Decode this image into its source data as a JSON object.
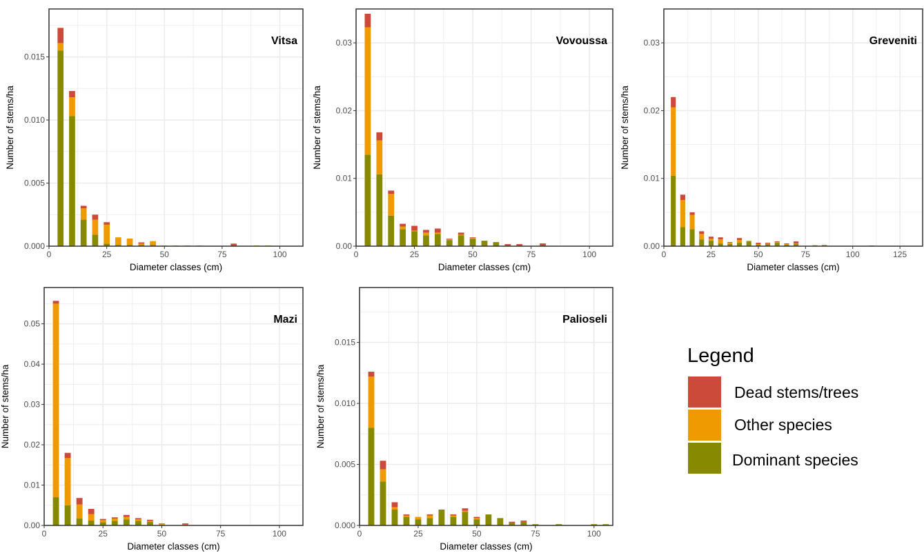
{
  "colors": {
    "dead": "#cc4a3a",
    "other": "#ee9a00",
    "dominant": "#878a00",
    "grid": "#ebebeb",
    "panel_border": "#333333"
  },
  "legend": {
    "title": "Legend",
    "items": [
      {
        "label": "Dead stems/trees",
        "color": "#cc4a3a"
      },
      {
        "label": "Other species",
        "color": "#ee9a00"
      },
      {
        "label": "Dominant species",
        "color": "#878a00"
      }
    ]
  },
  "chart_data": [
    {
      "type": "bar",
      "stacked": true,
      "grid": true,
      "title": "Vitsa",
      "xlabel": "Diameter classes (cm)",
      "ylabel": "Number of stems/ha",
      "xlim": [
        0,
        110
      ],
      "ylim": [
        0,
        0.0188
      ],
      "xticks": [
        0,
        25,
        50,
        75,
        100
      ],
      "yticks": [
        0,
        0.005,
        0.01,
        0.015
      ],
      "ytick_labels": [
        "0.000",
        "0.005",
        "0.010",
        "0.015"
      ],
      "x": [
        5,
        10,
        15,
        20,
        25,
        30,
        35,
        40,
        45,
        50,
        55,
        60,
        65,
        80,
        90,
        95
      ],
      "series": [
        {
          "name": "Dominant species",
          "values": [
            0.0155,
            0.0103,
            0.0021,
            0.0009,
            0.0002,
            0.0001,
            0.0001,
            0.0001,
            0.0001,
            0,
            0,
            0,
            0,
            0,
            0,
            0
          ]
        },
        {
          "name": "Other species",
          "values": [
            0.0006,
            0.0015,
            0.0009,
            0.0012,
            0.0015,
            0.0006,
            0.0005,
            0.0001,
            0.0003,
            5e-05,
            5e-05,
            5e-05,
            5e-05,
            0,
            5e-05,
            5e-05
          ]
        },
        {
          "name": "Dead stems/trees",
          "values": [
            0.0012,
            0.0005,
            0.0002,
            0.0004,
            0.0002,
            0,
            0,
            0.0001,
            0,
            0,
            0,
            0,
            0,
            0.0002,
            0,
            0
          ]
        }
      ]
    },
    {
      "type": "bar",
      "stacked": true,
      "grid": true,
      "title": "Vovoussa",
      "xlabel": "Diameter classes (cm)",
      "ylabel": "Number of stems/ha",
      "xlim": [
        0,
        110
      ],
      "ylim": [
        0,
        0.035
      ],
      "xticks": [
        0,
        25,
        50,
        75,
        100
      ],
      "yticks": [
        0,
        0.01,
        0.02,
        0.03
      ],
      "ytick_labels": [
        "0.00",
        "0.01",
        "0.02",
        "0.03"
      ],
      "x": [
        5,
        10,
        15,
        20,
        25,
        30,
        35,
        40,
        45,
        50,
        55,
        60,
        65,
        70,
        80
      ],
      "series": [
        {
          "name": "Dominant species",
          "values": [
            0.0135,
            0.0106,
            0.0045,
            0.0025,
            0.0022,
            0.0016,
            0.0018,
            0.0009,
            0.0016,
            0.0011,
            0.0008,
            0.0006,
            0.0001,
            0.0001,
            0.0001
          ]
        },
        {
          "name": "Other species",
          "values": [
            0.0188,
            0.005,
            0.0032,
            0.0004,
            0.0001,
            0.0004,
            0.0002,
            0.0001,
            0.0001,
            0.0001,
            0,
            0,
            0,
            0,
            0
          ]
        },
        {
          "name": "Dead stems/trees",
          "values": [
            0.002,
            0.0012,
            0.0005,
            0.0004,
            0.0007,
            0.0004,
            0.0006,
            0.0001,
            0.0003,
            0.0001,
            0,
            0,
            0.0002,
            0.0002,
            0.0003
          ]
        }
      ]
    },
    {
      "type": "bar",
      "stacked": true,
      "grid": true,
      "title": "Greveniti",
      "xlabel": "Diameter classes (cm)",
      "ylabel": "Number of stems/ha",
      "xlim": [
        0,
        137
      ],
      "ylim": [
        0,
        0.035
      ],
      "xticks": [
        0,
        25,
        50,
        75,
        100,
        125
      ],
      "yticks": [
        0,
        0.01,
        0.02,
        0.03
      ],
      "ytick_labels": [
        "0.00",
        "0.01",
        "0.02",
        "0.03"
      ],
      "x": [
        5,
        10,
        15,
        20,
        25,
        30,
        35,
        40,
        45,
        50,
        55,
        60,
        65,
        70,
        80,
        85,
        110
      ],
      "series": [
        {
          "name": "Dominant species",
          "values": [
            0.0104,
            0.0028,
            0.0025,
            0.001,
            0.0008,
            0.0004,
            0.0003,
            0.0005,
            0.0007,
            0.0002,
            0.0003,
            0.0005,
            0.0002,
            0.0003,
            0.0001,
            0.0001,
            0.0001
          ]
        },
        {
          "name": "Other species",
          "values": [
            0.0101,
            0.004,
            0.0021,
            0.0008,
            0.0003,
            0.0006,
            0.0002,
            0.0004,
            0.0001,
            0.0001,
            0.0001,
            0.0001,
            0.0001,
            0.0001,
            5e-05,
            0.0001,
            0
          ]
        },
        {
          "name": "Dead stems/trees",
          "values": [
            0.0015,
            0.0008,
            0.0004,
            0.0004,
            0.0003,
            0.0003,
            0.0001,
            0.0003,
            0,
            0.0002,
            0.0001,
            0.0001,
            0.0001,
            0.0003,
            0,
            0,
            0
          ]
        }
      ]
    },
    {
      "type": "bar",
      "stacked": true,
      "grid": true,
      "title": "Mazi",
      "xlabel": "Diameter classes (cm)",
      "ylabel": "Number of stems/ha",
      "xlim": [
        0,
        110
      ],
      "ylim": [
        0,
        0.059
      ],
      "xticks": [
        0,
        25,
        50,
        75,
        100
      ],
      "yticks": [
        0,
        0.01,
        0.02,
        0.03,
        0.04,
        0.05
      ],
      "ytick_labels": [
        "0.00",
        "0.01",
        "0.02",
        "0.03",
        "0.04",
        "0.05"
      ],
      "x": [
        5,
        10,
        15,
        20,
        25,
        30,
        35,
        40,
        45,
        50,
        60
      ],
      "series": [
        {
          "name": "Dominant species",
          "values": [
            0.007,
            0.005,
            0.0017,
            0.0012,
            0.0008,
            0.0011,
            0.0015,
            0.0011,
            0.0009,
            0.0002,
            0.0001
          ]
        },
        {
          "name": "Other species",
          "values": [
            0.048,
            0.0117,
            0.0035,
            0.0016,
            0.0005,
            0.0006,
            0.0006,
            0.0004,
            0.0002,
            0.0002,
            0.0001
          ]
        },
        {
          "name": "Dead stems/trees",
          "values": [
            0.0007,
            0.0013,
            0.0016,
            0.0013,
            0.0003,
            0.0003,
            0.0005,
            0.0003,
            0.0003,
            0.0001,
            0.0003
          ]
        }
      ]
    },
    {
      "type": "bar",
      "stacked": true,
      "grid": true,
      "title": "Palioseli",
      "xlabel": "Diameter classes (cm)",
      "ylabel": "Number of stems/ha",
      "xlim": [
        0,
        108
      ],
      "ylim": [
        0,
        0.0195
      ],
      "xticks": [
        0,
        25,
        50,
        75,
        100
      ],
      "yticks": [
        0,
        0.005,
        0.01,
        0.015
      ],
      "ytick_labels": [
        "0.000",
        "0.005",
        "0.010",
        "0.015"
      ],
      "x": [
        5,
        10,
        15,
        20,
        25,
        30,
        35,
        40,
        45,
        50,
        55,
        60,
        65,
        70,
        75,
        85,
        100,
        105
      ],
      "series": [
        {
          "name": "Dominant species",
          "values": [
            0.008,
            0.0036,
            0.0013,
            0.0007,
            0.0005,
            0.0006,
            0.0013,
            0.0007,
            0.0011,
            0.0005,
            0.0009,
            0.0006,
            0.0002,
            0.0003,
            0.0001,
            0.0001,
            0.0001,
            0.0001
          ]
        },
        {
          "name": "Other species",
          "values": [
            0.0042,
            0.001,
            0.0002,
            0.0001,
            0.0002,
            0.0002,
            0,
            0.0001,
            0.0001,
            0.0001,
            0,
            0,
            0,
            0,
            0,
            0,
            0,
            0
          ]
        },
        {
          "name": "Dead stems/trees",
          "values": [
            0.0004,
            0.0007,
            0.0004,
            0.0001,
            0,
            0.0001,
            0,
            0.0001,
            0.0002,
            0.0001,
            0,
            0,
            0.0001,
            0.0001,
            0,
            0,
            0,
            0
          ]
        }
      ]
    }
  ]
}
